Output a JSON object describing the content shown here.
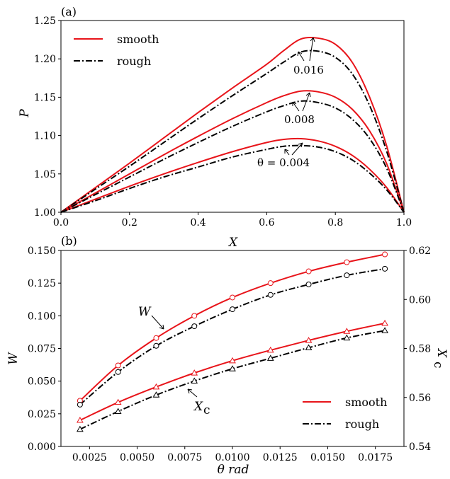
{
  "colors": {
    "smooth": "#e8141a",
    "rough": "#000000"
  },
  "chart_data": [
    {
      "type": "line",
      "panel_label": "(a)",
      "xlabel": "X",
      "ylabel": "P",
      "xlim": [
        0.0,
        1.0
      ],
      "ylim": [
        1.0,
        1.25
      ],
      "xticks": [
        "0.0",
        "0.2",
        "0.4",
        "0.6",
        "0.8",
        "1.0"
      ],
      "yticks": [
        "1.00",
        "1.05",
        "1.10",
        "1.15",
        "1.20",
        "1.25"
      ],
      "legend": {
        "position": "top-left",
        "entries": [
          "smooth",
          "rough"
        ]
      },
      "annotations": [
        "0.016",
        "0.008",
        "θ = 0.004"
      ],
      "series": [
        {
          "name": "smooth",
          "theta": 0.016,
          "x": [
            0,
            0.1,
            0.2,
            0.3,
            0.4,
            0.5,
            0.6,
            0.65,
            0.7,
            0.75,
            0.8,
            0.85,
            0.9,
            0.95,
            1.0
          ],
          "y": [
            1.0,
            1.032,
            1.064,
            1.097,
            1.13,
            1.162,
            1.193,
            1.211,
            1.226,
            1.227,
            1.219,
            1.195,
            1.15,
            1.086,
            1.0
          ]
        },
        {
          "name": "rough",
          "theta": 0.016,
          "x": [
            0,
            0.1,
            0.2,
            0.3,
            0.4,
            0.5,
            0.6,
            0.65,
            0.7,
            0.75,
            0.8,
            0.85,
            0.9,
            0.95,
            1.0
          ],
          "y": [
            1.0,
            1.03,
            1.06,
            1.091,
            1.122,
            1.152,
            1.181,
            1.196,
            1.209,
            1.21,
            1.202,
            1.18,
            1.139,
            1.079,
            1.0
          ]
        },
        {
          "name": "smooth",
          "theta": 0.008,
          "x": [
            0,
            0.1,
            0.2,
            0.3,
            0.4,
            0.5,
            0.6,
            0.65,
            0.7,
            0.75,
            0.8,
            0.85,
            0.9,
            0.95,
            1.0
          ],
          "y": [
            1.0,
            1.025,
            1.05,
            1.075,
            1.099,
            1.122,
            1.143,
            1.152,
            1.158,
            1.157,
            1.15,
            1.134,
            1.106,
            1.063,
            1.0
          ]
        },
        {
          "name": "rough",
          "theta": 0.008,
          "x": [
            0,
            0.1,
            0.2,
            0.3,
            0.4,
            0.5,
            0.6,
            0.65,
            0.7,
            0.75,
            0.8,
            0.85,
            0.9,
            0.95,
            1.0
          ],
          "y": [
            1.0,
            1.023,
            1.046,
            1.069,
            1.091,
            1.112,
            1.131,
            1.139,
            1.145,
            1.143,
            1.136,
            1.121,
            1.096,
            1.057,
            1.0
          ]
        },
        {
          "name": "smooth",
          "theta": 0.004,
          "x": [
            0,
            0.1,
            0.2,
            0.3,
            0.4,
            0.5,
            0.6,
            0.65,
            0.7,
            0.75,
            0.8,
            0.85,
            0.9,
            0.95,
            1.0
          ],
          "y": [
            1.0,
            1.017,
            1.034,
            1.05,
            1.065,
            1.079,
            1.091,
            1.095,
            1.096,
            1.093,
            1.086,
            1.074,
            1.056,
            1.032,
            1.0
          ]
        },
        {
          "name": "rough",
          "theta": 0.004,
          "x": [
            0,
            0.1,
            0.2,
            0.3,
            0.4,
            0.5,
            0.6,
            0.65,
            0.7,
            0.75,
            0.8,
            0.85,
            0.9,
            0.95,
            1.0
          ],
          "y": [
            1.0,
            1.015,
            1.031,
            1.046,
            1.059,
            1.072,
            1.082,
            1.086,
            1.087,
            1.085,
            1.079,
            1.068,
            1.051,
            1.029,
            1.0
          ]
        }
      ]
    },
    {
      "type": "line",
      "panel_label": "(b)",
      "xlabel": "θ rad",
      "ylabel": "W",
      "y2label": "Xc",
      "xlim": [
        0.001,
        0.019
      ],
      "ylim": [
        0.0,
        0.15
      ],
      "y2lim": [
        0.54,
        0.62
      ],
      "xticks": [
        "0.0025",
        "0.0050",
        "0.0075",
        "0.0100",
        "0.0125",
        "0.0150",
        "0.0175"
      ],
      "yticks": [
        "0.000",
        "0.025",
        "0.050",
        "0.075",
        "0.100",
        "0.125",
        "0.150"
      ],
      "y2ticks": [
        "0.54",
        "0.56",
        "0.58",
        "0.60",
        "0.62"
      ],
      "legend": {
        "position": "bottom-right",
        "entries": [
          "smooth",
          "rough"
        ]
      },
      "annotations": [
        "W",
        "X",
        "c"
      ],
      "x": [
        0.002,
        0.004,
        0.006,
        0.008,
        0.01,
        0.012,
        0.014,
        0.016,
        0.018
      ],
      "series": [
        {
          "name": "smooth",
          "quantity": "W",
          "axis": "left",
          "marker": "circle",
          "y": [
            0.035,
            0.062,
            0.083,
            0.1,
            0.114,
            0.125,
            0.134,
            0.141,
            0.147
          ]
        },
        {
          "name": "rough",
          "quantity": "W",
          "axis": "left",
          "marker": "circle",
          "y": [
            0.032,
            0.057,
            0.077,
            0.092,
            0.105,
            0.116,
            0.124,
            0.131,
            0.136
          ]
        },
        {
          "name": "smooth",
          "quantity": "Xc",
          "axis": "right",
          "marker": "triangle",
          "y": [
            0.5507,
            0.558,
            0.5643,
            0.57,
            0.575,
            0.5793,
            0.5833,
            0.587,
            0.5903
          ]
        },
        {
          "name": "rough",
          "quantity": "Xc",
          "axis": "right",
          "marker": "triangle",
          "y": [
            0.547,
            0.5543,
            0.561,
            0.5667,
            0.5717,
            0.576,
            0.5803,
            0.5843,
            0.5873
          ]
        }
      ]
    }
  ]
}
